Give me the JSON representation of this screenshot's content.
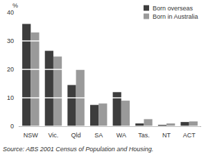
{
  "chart_data": {
    "type": "bar",
    "ylabel": "%",
    "categories": [
      "NSW",
      "Vic.",
      "Qld",
      "SA",
      "WA",
      "Tas.",
      "NT",
      "ACT"
    ],
    "series": [
      {
        "name": "Born overseas",
        "color": "#3d3d3d",
        "values": [
          36,
          26.5,
          14.5,
          7.5,
          12,
          1,
          0.5,
          1.5
        ]
      },
      {
        "name": "Born in Australia",
        "color": "#9a9a9a",
        "values": [
          33,
          24.5,
          20,
          8,
          9,
          2.5,
          1,
          1.7
        ]
      }
    ],
    "ylim": [
      0,
      40
    ],
    "yticks": [
      0,
      10,
      20,
      30,
      40
    ],
    "grid": true,
    "legend": "top-right",
    "annotations": [
      "Source: ABS 2001 Census of Population and Housing."
    ]
  }
}
